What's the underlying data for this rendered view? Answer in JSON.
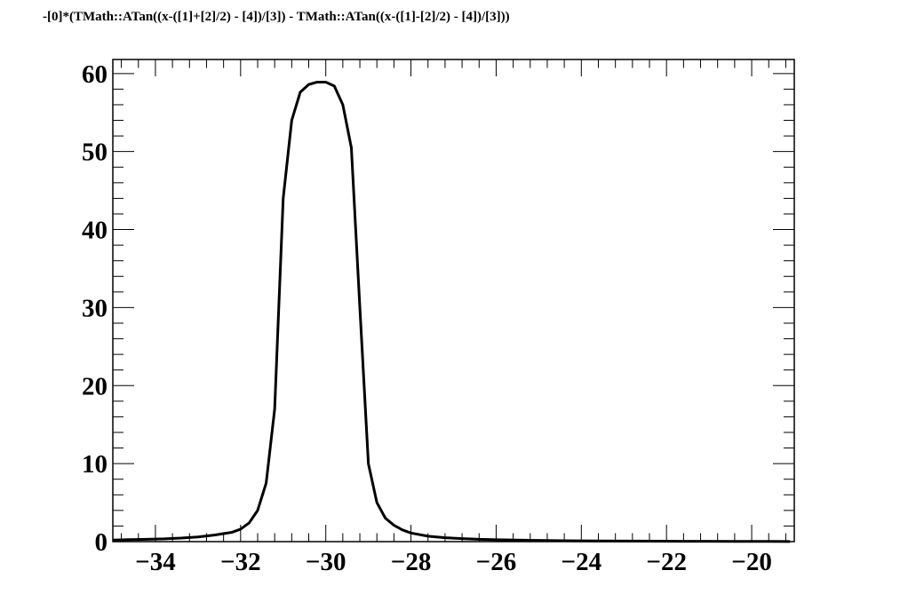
{
  "chart_data": {
    "type": "line",
    "title": "-[0]*(TMath::ATan((x-([1]+[2]/2) - [4])/[3]) - TMath::ATan((x-([1]-[2]/2) - [4])/[3]))",
    "xlabel": "",
    "ylabel": "",
    "xlim": [
      -35,
      -19
    ],
    "ylim": [
      0,
      61.8
    ],
    "x_ticks": [
      -34,
      -32,
      -30,
      -28,
      -26,
      -24,
      -22,
      -20
    ],
    "x_tick_labels": [
      "−34",
      "−32",
      "−30",
      "−28",
      "−26",
      "−24",
      "−22",
      "−20"
    ],
    "y_ticks": [
      0,
      10,
      20,
      30,
      40,
      50,
      60
    ],
    "y_tick_labels": [
      "0",
      "10",
      "20",
      "30",
      "40",
      "50",
      "60"
    ],
    "grid": false,
    "line_color": "#000000",
    "series": [
      {
        "x": [
          -35,
          -34.6,
          -34.2,
          -33.8,
          -33.4,
          -33.0,
          -32.6,
          -32.2,
          -32.0,
          -31.8,
          -31.6,
          -31.4,
          -31.2,
          -31.0,
          -30.8,
          -30.6,
          -30.4,
          -30.2,
          -30.0,
          -29.8,
          -29.6,
          -29.4,
          -29.2,
          -29.0,
          -28.8,
          -28.6,
          -28.4,
          -28.2,
          -28.0,
          -27.6,
          -27.2,
          -26.8,
          -26.4,
          -26.0,
          -25.2,
          -24.4,
          -23.6,
          -22.8,
          -22.0,
          -21.2,
          -20.4,
          -19.6,
          -19.1
        ],
        "y": [
          0.2,
          0.25,
          0.3,
          0.35,
          0.45,
          0.6,
          0.85,
          1.2,
          1.6,
          2.4,
          4.0,
          7.5,
          17,
          44,
          54,
          57.6,
          58.6,
          58.9,
          58.9,
          58.4,
          56,
          50.5,
          30,
          10,
          5,
          3,
          2.1,
          1.5,
          1.1,
          0.7,
          0.5,
          0.38,
          0.3,
          0.24,
          0.17,
          0.12,
          0.09,
          0.07,
          0.05,
          0.04,
          0.03,
          0.03,
          0.02
        ]
      }
    ]
  }
}
